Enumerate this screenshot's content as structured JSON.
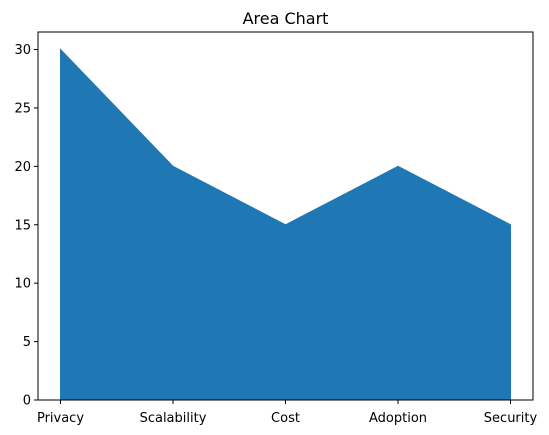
{
  "chart_data": {
    "type": "area",
    "title": "Area Chart",
    "xlabel": "",
    "ylabel": "",
    "categories": [
      "Privacy",
      "Scalability",
      "Cost",
      "Adoption",
      "Security"
    ],
    "values": [
      30,
      20,
      15,
      20,
      15
    ],
    "ylim": [
      0,
      31.5
    ],
    "yticks": [
      0,
      5,
      10,
      15,
      20,
      25,
      30
    ],
    "grid": false,
    "legend": "none",
    "colors": {
      "area": "#1f77b4",
      "axis": "#000000",
      "background": "#ffffff"
    }
  }
}
